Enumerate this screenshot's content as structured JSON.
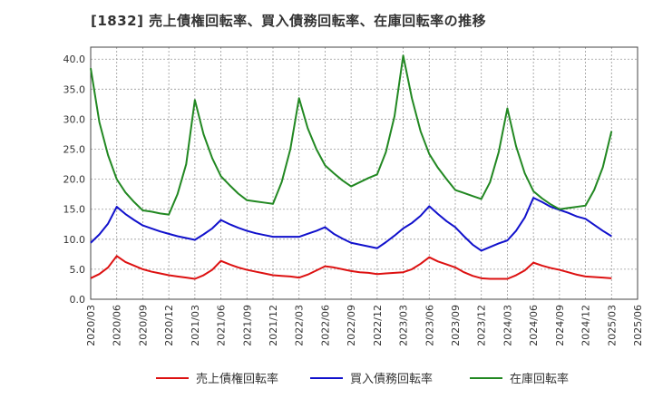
{
  "chart_data": {
    "type": "line",
    "title": "[1832]  売上債権回転率、買入債務回転率、在庫回転率の推移",
    "xlabel": "",
    "ylabel": "",
    "ylim": [
      0,
      42
    ],
    "yticks": [
      "0.0",
      "5.0",
      "10.0",
      "15.0",
      "20.0",
      "25.0",
      "30.0",
      "35.0",
      "40.0"
    ],
    "ytick_values": [
      0,
      5,
      10,
      15,
      20,
      25,
      30,
      35,
      40
    ],
    "x_tick_labels": [
      "2020/03",
      "2020/06",
      "2020/09",
      "2020/12",
      "2021/03",
      "2021/06",
      "2021/09",
      "2021/12",
      "2022/03",
      "2022/06",
      "2022/09",
      "2022/12",
      "2023/03",
      "2023/06",
      "2023/09",
      "2023/12",
      "2024/03",
      "2024/06",
      "2024/09",
      "2024/12",
      "2025/03",
      "2025/06"
    ],
    "grid": true,
    "legend_position": "bottom",
    "months": [
      "2020/03",
      "2020/04",
      "2020/05",
      "2020/06",
      "2020/07",
      "2020/08",
      "2020/09",
      "2020/10",
      "2020/11",
      "2020/12",
      "2021/01",
      "2021/02",
      "2021/03",
      "2021/04",
      "2021/05",
      "2021/06",
      "2021/07",
      "2021/08",
      "2021/09",
      "2021/10",
      "2021/11",
      "2021/12",
      "2022/01",
      "2022/02",
      "2022/03",
      "2022/04",
      "2022/05",
      "2022/06",
      "2022/07",
      "2022/08",
      "2022/09",
      "2022/10",
      "2022/11",
      "2022/12",
      "2023/01",
      "2023/02",
      "2023/03",
      "2023/04",
      "2023/05",
      "2023/06",
      "2023/07",
      "2023/08",
      "2023/09",
      "2023/10",
      "2023/11",
      "2023/12",
      "2024/01",
      "2024/02",
      "2024/03",
      "2024/04",
      "2024/05",
      "2024/06",
      "2024/07",
      "2024/08",
      "2024/09",
      "2024/10",
      "2024/11",
      "2024/12",
      "2025/01",
      "2025/02",
      "2025/03"
    ],
    "series": [
      {
        "name": "売上債権回転率",
        "color": "#dd1111",
        "values": [
          3.5,
          4.2,
          5.3,
          7.2,
          6.2,
          5.6,
          5.0,
          4.6,
          4.3,
          4.0,
          3.8,
          3.6,
          3.4,
          4.0,
          4.9,
          6.4,
          5.8,
          5.3,
          4.9,
          4.6,
          4.3,
          4.0,
          3.9,
          3.8,
          3.6,
          4.1,
          4.8,
          5.5,
          5.3,
          5.0,
          4.7,
          4.5,
          4.4,
          4.2,
          4.3,
          4.4,
          4.5,
          5.0,
          5.9,
          7.0,
          6.3,
          5.8,
          5.3,
          4.5,
          3.9,
          3.5,
          3.4,
          3.4,
          3.4,
          4.0,
          4.8,
          6.1,
          5.6,
          5.2,
          4.9,
          4.5,
          4.1,
          3.8,
          3.7,
          3.6,
          3.5
        ]
      },
      {
        "name": "買入債務回転率",
        "color": "#1111cc",
        "values": [
          9.4,
          10.8,
          12.6,
          15.4,
          14.2,
          13.2,
          12.3,
          11.8,
          11.3,
          10.9,
          10.5,
          10.2,
          9.9,
          10.8,
          11.8,
          13.2,
          12.5,
          11.9,
          11.4,
          11.0,
          10.7,
          10.4,
          10.4,
          10.4,
          10.4,
          10.9,
          11.4,
          12.0,
          10.9,
          10.1,
          9.4,
          9.1,
          8.8,
          8.5,
          9.5,
          10.6,
          11.8,
          12.7,
          13.9,
          15.5,
          14.2,
          13.0,
          12.0,
          10.5,
          9.1,
          8.1,
          8.7,
          9.3,
          9.8,
          11.4,
          13.6,
          16.9,
          16.2,
          15.4,
          14.9,
          14.4,
          13.8,
          13.4,
          12.4,
          11.4,
          10.5
        ]
      },
      {
        "name": "在庫回転率",
        "color": "#228822",
        "values": [
          38.5,
          29.5,
          24.0,
          20.0,
          17.8,
          16.2,
          14.8,
          14.6,
          14.3,
          14.1,
          17.5,
          22.5,
          33.2,
          27.5,
          23.5,
          20.5,
          19.0,
          17.6,
          16.5,
          16.3,
          16.1,
          15.9,
          19.5,
          25.0,
          33.5,
          28.5,
          25.0,
          22.3,
          21.0,
          19.8,
          18.8,
          19.5,
          20.2,
          20.8,
          24.5,
          30.5,
          40.6,
          33.5,
          28.0,
          24.2,
          21.9,
          20.0,
          18.2,
          17.7,
          17.2,
          16.7,
          19.5,
          24.5,
          31.8,
          25.5,
          21.0,
          18.0,
          16.8,
          15.8,
          15.0,
          15.2,
          15.4,
          15.6,
          18.2,
          22.0,
          28.0
        ]
      }
    ]
  }
}
